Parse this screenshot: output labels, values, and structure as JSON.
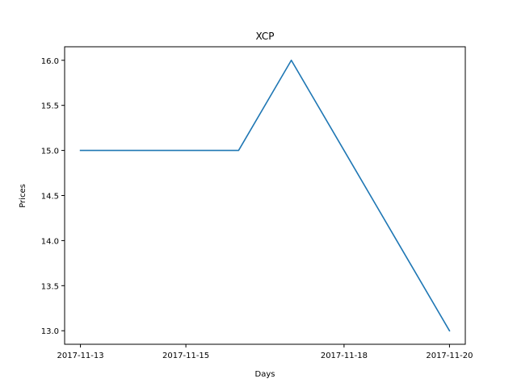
{
  "chart_data": {
    "type": "line",
    "title": "XCP",
    "xlabel": "Days",
    "ylabel": "Prices",
    "x": [
      "2017-11-13",
      "2017-11-14",
      "2017-11-15",
      "2017-11-16",
      "2017-11-17",
      "2017-11-18",
      "2017-11-19",
      "2017-11-20"
    ],
    "series": [
      {
        "values": [
          15.0,
          15.0,
          15.0,
          15.0,
          16.0,
          15.0,
          14.0,
          13.0
        ]
      }
    ],
    "x_tick_labels": [
      "2017-11-13",
      "2017-11-15",
      "2017-11-18",
      "2017-11-20"
    ],
    "x_tick_positions": [
      "2017-11-13",
      "2017-11-15",
      "2017-11-18",
      "2017-11-20"
    ],
    "y_ticks": [
      13.0,
      13.5,
      14.0,
      14.5,
      15.0,
      15.5,
      16.0
    ],
    "y_tick_labels": [
      "13.0",
      "13.5",
      "14.0",
      "14.5",
      "15.0",
      "15.5",
      "16.0"
    ],
    "xlim": [
      "2017-11-12 16:48",
      "2017-11-20 07:12"
    ],
    "ylim": [
      12.85,
      16.15
    ],
    "grid": false,
    "legend": "none",
    "line_color": "#1f77b4"
  }
}
